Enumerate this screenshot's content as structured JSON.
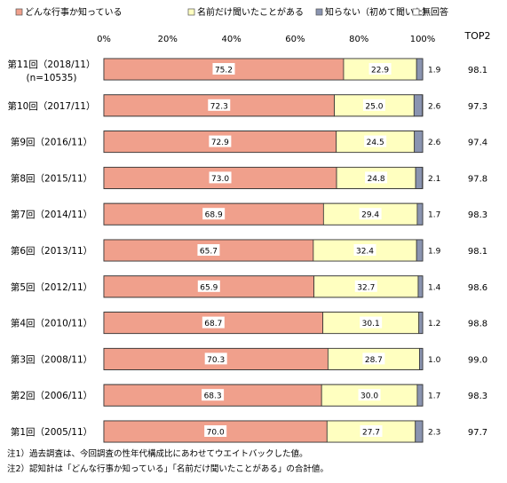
{
  "legend": [
    {
      "name": "どんな行事か知っている",
      "color": "#f0a08c"
    },
    {
      "name": "名前だけ聞いたことがある",
      "color": "#ffffc0"
    },
    {
      "name": "知らない（初めて聞いた）",
      "color": "#8a94b0"
    },
    {
      "name": "無回答",
      "color": "#ffffff"
    }
  ],
  "top2_header": "TOP2",
  "chart_data": {
    "type": "bar",
    "orientation": "horizontal",
    "stacked": true,
    "x_tick_labels": [
      "0%",
      "20%",
      "40%",
      "60%",
      "80%",
      "100%"
    ],
    "xlim": [
      0,
      100
    ],
    "categories": [
      "第11回（2018/11）",
      "第10回（2017/11）",
      "第9回（2016/11）",
      "第8回（2015/11）",
      "第7回（2014/11）",
      "第6回（2013/11）",
      "第5回（2012/11）",
      "第4回（2010/11）",
      "第3回（2008/11）",
      "第2回（2006/11）",
      "第1回（2005/11）"
    ],
    "category_sublabels": [
      "(n=10535)",
      "",
      "",
      "",
      "",
      "",
      "",
      "",
      "",
      "",
      ""
    ],
    "series": [
      {
        "name": "どんな行事か知っている",
        "values": [
          75.2,
          72.3,
          72.9,
          73.0,
          68.9,
          65.7,
          65.9,
          68.7,
          70.3,
          68.3,
          70.0
        ]
      },
      {
        "name": "名前だけ聞いたことがある",
        "values": [
          22.9,
          25.0,
          24.5,
          24.8,
          29.4,
          32.4,
          32.7,
          30.1,
          28.7,
          30.0,
          27.7
        ]
      },
      {
        "name": "知らない（初めて聞いた）",
        "values": [
          1.9,
          2.6,
          2.6,
          2.1,
          1.7,
          1.9,
          1.4,
          1.2,
          1.0,
          1.7,
          2.3
        ]
      }
    ],
    "value_labels": [
      [
        "75.2",
        "22.9",
        "1.9"
      ],
      [
        "72.3",
        "25.0",
        "2.6"
      ],
      [
        "72.9",
        "24.5",
        "2.6"
      ],
      [
        "73.0",
        "24.8",
        "2.1"
      ],
      [
        "68.9",
        "29.4",
        "1.7"
      ],
      [
        "65.7",
        "32.4",
        "1.9"
      ],
      [
        "65.9",
        "32.7",
        "1.4"
      ],
      [
        "68.7",
        "30.1",
        "1.2"
      ],
      [
        "70.3",
        "28.7",
        "1.0"
      ],
      [
        "68.3",
        "30.0",
        "1.7"
      ],
      [
        "70.0",
        "27.7",
        "2.3"
      ]
    ],
    "top2": [
      "98.1",
      "97.3",
      "97.4",
      "97.8",
      "98.3",
      "98.1",
      "98.6",
      "98.8",
      "99.0",
      "98.3",
      "97.7"
    ],
    "legend_position": "top"
  },
  "notes": [
    "注1）過去調査は、今回調査の性年代構成比にあわせてウエイトバックした値。",
    "注2）認知計は「どんな行事か知っている」「名前だけ聞いたことがある」の合計値。"
  ]
}
